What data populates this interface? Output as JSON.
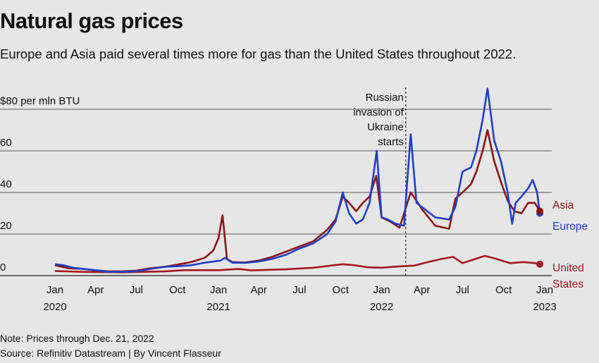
{
  "chart_data": {
    "type": "line",
    "title": "Natural gas prices",
    "subtitle": "Europe and Asia paid several times more for gas than the United States throughout 2022.",
    "ylabel": "$80 per mln BTU",
    "ylim": [
      0,
      80
    ],
    "yticks": [
      0,
      20,
      40,
      60,
      80
    ],
    "ytick_labels": [
      "0",
      "20",
      "40",
      "60",
      "$80 per mln BTU"
    ],
    "xlim": [
      "2020-01-01",
      "2023-01-01"
    ],
    "xticks": [
      {
        "date": "2020-01-01",
        "label": "Jan",
        "year": "2020"
      },
      {
        "date": "2020-04-01",
        "label": "Apr",
        "year": ""
      },
      {
        "date": "2020-07-01",
        "label": "Jul",
        "year": ""
      },
      {
        "date": "2020-10-01",
        "label": "Oct",
        "year": ""
      },
      {
        "date": "2021-01-01",
        "label": "Jan",
        "year": "2021"
      },
      {
        "date": "2021-04-01",
        "label": "Apr",
        "year": ""
      },
      {
        "date": "2021-07-01",
        "label": "Jul",
        "year": ""
      },
      {
        "date": "2021-10-01",
        "label": "Oct",
        "year": ""
      },
      {
        "date": "2022-01-01",
        "label": "Jan",
        "year": "2022"
      },
      {
        "date": "2022-04-01",
        "label": "Apr",
        "year": ""
      },
      {
        "date": "2022-07-01",
        "label": "Jul",
        "year": ""
      },
      {
        "date": "2022-10-01",
        "label": "Oct",
        "year": ""
      },
      {
        "date": "2023-01-01",
        "label": "Jan",
        "year": "2023"
      }
    ],
    "grid": true,
    "annotation": {
      "date": "2022-02-24",
      "lines": [
        "Russian",
        "invasion of",
        "Ukraine",
        "starts"
      ]
    },
    "series": [
      {
        "name": "Europe",
        "label_lines": [
          "Europe"
        ],
        "color": "#1f3fc4",
        "points": [
          [
            "2020-01-01",
            5.5
          ],
          [
            "2020-01-20",
            5.0
          ],
          [
            "2020-02-10",
            3.8
          ],
          [
            "2020-03-01",
            3.3
          ],
          [
            "2020-04-01",
            2.6
          ],
          [
            "2020-05-01",
            1.8
          ],
          [
            "2020-06-01",
            1.9
          ],
          [
            "2020-07-01",
            2.0
          ],
          [
            "2020-08-01",
            3.2
          ],
          [
            "2020-09-01",
            4.2
          ],
          [
            "2020-10-01",
            4.5
          ],
          [
            "2020-11-01",
            5.0
          ],
          [
            "2020-12-01",
            6.2
          ],
          [
            "2021-01-05",
            7.2
          ],
          [
            "2021-01-15",
            8.5
          ],
          [
            "2021-02-01",
            6.2
          ],
          [
            "2021-03-01",
            6.1
          ],
          [
            "2021-04-01",
            6.8
          ],
          [
            "2021-05-01",
            8.0
          ],
          [
            "2021-06-01",
            10.0
          ],
          [
            "2021-07-01",
            13.0
          ],
          [
            "2021-08-01",
            15.5
          ],
          [
            "2021-09-01",
            20.0
          ],
          [
            "2021-09-20",
            26.0
          ],
          [
            "2021-10-06",
            40.0
          ],
          [
            "2021-10-20",
            30.0
          ],
          [
            "2021-11-05",
            25.0
          ],
          [
            "2021-11-20",
            27.0
          ],
          [
            "2021-12-05",
            35.0
          ],
          [
            "2021-12-21",
            60.0
          ],
          [
            "2022-01-01",
            28.0
          ],
          [
            "2022-01-15",
            27.0
          ],
          [
            "2022-02-01",
            25.0
          ],
          [
            "2022-02-20",
            24.0
          ],
          [
            "2022-03-07",
            68.0
          ],
          [
            "2022-03-20",
            35.0
          ],
          [
            "2022-04-01",
            33.0
          ],
          [
            "2022-05-01",
            28.0
          ],
          [
            "2022-06-01",
            27.0
          ],
          [
            "2022-06-15",
            33.0
          ],
          [
            "2022-07-01",
            50.0
          ],
          [
            "2022-07-20",
            52.0
          ],
          [
            "2022-08-01",
            60.0
          ],
          [
            "2022-08-15",
            75.0
          ],
          [
            "2022-08-26",
            90.0
          ],
          [
            "2022-09-10",
            65.0
          ],
          [
            "2022-09-25",
            55.0
          ],
          [
            "2022-10-10",
            40.0
          ],
          [
            "2022-10-20",
            25.0
          ],
          [
            "2022-10-28",
            35.0
          ],
          [
            "2022-11-10",
            38.0
          ],
          [
            "2022-11-25",
            42.0
          ],
          [
            "2022-12-05",
            46.0
          ],
          [
            "2022-12-15",
            40.0
          ],
          [
            "2022-12-21",
            30.0
          ]
        ]
      },
      {
        "name": "Asia",
        "label_lines": [
          "Asia"
        ],
        "color": "#8b1414",
        "points": [
          [
            "2020-01-01",
            5.0
          ],
          [
            "2020-02-01",
            3.5
          ],
          [
            "2020-03-01",
            3.3
          ],
          [
            "2020-04-01",
            2.5
          ],
          [
            "2020-05-01",
            2.0
          ],
          [
            "2020-06-01",
            2.1
          ],
          [
            "2020-07-01",
            2.4
          ],
          [
            "2020-08-01",
            3.5
          ],
          [
            "2020-09-01",
            4.2
          ],
          [
            "2020-10-01",
            5.3
          ],
          [
            "2020-11-01",
            6.5
          ],
          [
            "2020-12-01",
            8.5
          ],
          [
            "2020-12-20",
            12.0
          ],
          [
            "2021-01-01",
            18.0
          ],
          [
            "2021-01-10",
            29.0
          ],
          [
            "2021-01-20",
            8.0
          ],
          [
            "2021-02-01",
            6.5
          ],
          [
            "2021-03-01",
            6.3
          ],
          [
            "2021-04-01",
            7.2
          ],
          [
            "2021-05-01",
            9.0
          ],
          [
            "2021-06-01",
            11.5
          ],
          [
            "2021-07-01",
            14.0
          ],
          [
            "2021-08-01",
            16.5
          ],
          [
            "2021-09-01",
            22.0
          ],
          [
            "2021-09-20",
            27.0
          ],
          [
            "2021-10-06",
            38.0
          ],
          [
            "2021-10-20",
            35.0
          ],
          [
            "2021-11-05",
            31.0
          ],
          [
            "2021-11-20",
            35.0
          ],
          [
            "2021-12-05",
            38.0
          ],
          [
            "2021-12-20",
            48.0
          ],
          [
            "2022-01-01",
            28.0
          ],
          [
            "2022-01-20",
            26.0
          ],
          [
            "2022-02-10",
            23.0
          ],
          [
            "2022-03-07",
            40.0
          ],
          [
            "2022-03-20",
            36.0
          ],
          [
            "2022-04-01",
            32.0
          ],
          [
            "2022-05-01",
            24.0
          ],
          [
            "2022-06-01",
            22.5
          ],
          [
            "2022-06-15",
            37.0
          ],
          [
            "2022-07-01",
            40.0
          ],
          [
            "2022-07-20",
            44.0
          ],
          [
            "2022-08-01",
            50.0
          ],
          [
            "2022-08-15",
            60.0
          ],
          [
            "2022-08-26",
            70.0
          ],
          [
            "2022-09-10",
            55.0
          ],
          [
            "2022-09-25",
            45.0
          ],
          [
            "2022-10-10",
            36.0
          ],
          [
            "2022-10-25",
            31.0
          ],
          [
            "2022-11-10",
            30.0
          ],
          [
            "2022-11-25",
            35.0
          ],
          [
            "2022-12-10",
            35.0
          ],
          [
            "2022-12-21",
            31.0
          ]
        ]
      },
      {
        "name": "United States",
        "label_lines": [
          "United",
          "States"
        ],
        "color": "#a3161f",
        "points": [
          [
            "2020-01-01",
            2.2
          ],
          [
            "2020-03-01",
            1.8
          ],
          [
            "2020-06-01",
            1.6
          ],
          [
            "2020-09-01",
            2.0
          ],
          [
            "2020-10-15",
            2.6
          ],
          [
            "2021-01-01",
            2.6
          ],
          [
            "2021-02-15",
            3.2
          ],
          [
            "2021-03-15",
            2.5
          ],
          [
            "2021-06-01",
            3.0
          ],
          [
            "2021-08-01",
            3.8
          ],
          [
            "2021-10-06",
            5.5
          ],
          [
            "2021-11-01",
            5.0
          ],
          [
            "2021-12-01",
            4.0
          ],
          [
            "2022-01-01",
            3.8
          ],
          [
            "2022-02-15",
            4.5
          ],
          [
            "2022-03-15",
            4.8
          ],
          [
            "2022-04-15",
            6.5
          ],
          [
            "2022-05-15",
            8.0
          ],
          [
            "2022-06-10",
            9.0
          ],
          [
            "2022-07-01",
            6.0
          ],
          [
            "2022-08-20",
            9.5
          ],
          [
            "2022-09-15",
            8.0
          ],
          [
            "2022-10-15",
            6.0
          ],
          [
            "2022-11-15",
            6.5
          ],
          [
            "2022-12-10",
            6.0
          ],
          [
            "2022-12-21",
            5.5
          ]
        ]
      }
    ]
  },
  "footer": {
    "note": "Note: Prices through Dec. 21, 2022",
    "source": "Source: Refinitiv Datastream | By Vincent Flasseur"
  }
}
